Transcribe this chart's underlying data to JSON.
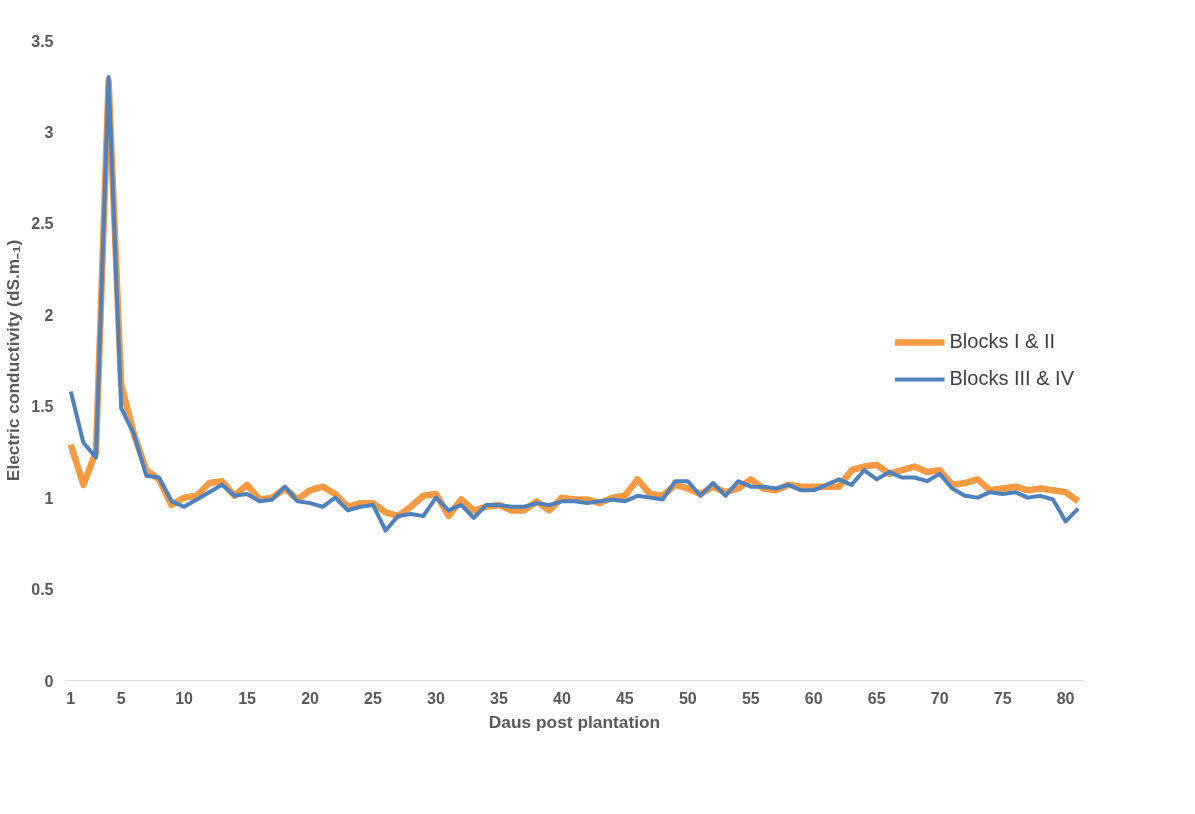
{
  "chart_data": {
    "type": "line",
    "xlabel": "Daus post plantation",
    "ylabel": "Electric conductivity (dS.m₋₁)",
    "x": [
      1,
      2,
      3,
      4,
      5,
      6,
      7,
      8,
      9,
      10,
      11,
      12,
      13,
      14,
      15,
      16,
      17,
      18,
      19,
      20,
      21,
      22,
      23,
      24,
      25,
      26,
      27,
      28,
      29,
      30,
      31,
      32,
      33,
      34,
      35,
      36,
      37,
      38,
      39,
      40,
      41,
      42,
      43,
      44,
      45,
      46,
      47,
      48,
      49,
      50,
      51,
      52,
      53,
      54,
      55,
      56,
      57,
      58,
      59,
      60,
      61,
      62,
      63,
      64,
      65,
      66,
      67,
      68,
      69,
      70,
      71,
      72,
      73,
      74,
      75,
      76,
      77,
      78,
      79,
      80,
      81
    ],
    "xlim": [
      0.5,
      81.5
    ],
    "xticks": [
      1,
      5,
      10,
      15,
      20,
      25,
      30,
      35,
      40,
      45,
      50,
      55,
      60,
      65,
      70,
      75,
      80
    ],
    "ylim": [
      0,
      3.5
    ],
    "yticks": [
      0,
      0.5,
      1,
      1.5,
      2,
      2.5,
      3,
      3.5
    ],
    "grid": false,
    "legend": "right",
    "marker": "none",
    "line_style": "solid",
    "series": [
      {
        "name": "Blocks I & II",
        "color": "#f39a43",
        "values": [
          1.29,
          1.07,
          1.25,
          3.28,
          1.62,
          1.35,
          1.15,
          1.1,
          0.96,
          1.0,
          1.01,
          1.08,
          1.09,
          1.01,
          1.07,
          0.99,
          1.0,
          1.05,
          0.99,
          1.04,
          1.06,
          1.02,
          0.95,
          0.97,
          0.97,
          0.92,
          0.9,
          0.95,
          1.01,
          1.02,
          0.9,
          0.99,
          0.93,
          0.95,
          0.96,
          0.93,
          0.93,
          0.98,
          0.93,
          1.0,
          0.99,
          0.99,
          0.97,
          1.0,
          1.01,
          1.1,
          1.02,
          1.01,
          1.07,
          1.05,
          1.02,
          1.06,
          1.03,
          1.05,
          1.1,
          1.05,
          1.04,
          1.07,
          1.06,
          1.06,
          1.06,
          1.06,
          1.15,
          1.17,
          1.18,
          1.13,
          1.15,
          1.17,
          1.14,
          1.15,
          1.07,
          1.08,
          1.1,
          1.04,
          1.05,
          1.06,
          1.04,
          1.05,
          1.04,
          1.03,
          0.98
        ]
      },
      {
        "name": "Blocks III & IV",
        "color": "#4f81bd",
        "values": [
          1.58,
          1.3,
          1.22,
          3.3,
          1.49,
          1.35,
          1.12,
          1.11,
          0.98,
          0.95,
          0.99,
          1.03,
          1.07,
          1.01,
          1.02,
          0.98,
          0.99,
          1.06,
          0.98,
          0.97,
          0.95,
          1.0,
          0.93,
          0.95,
          0.96,
          0.82,
          0.9,
          0.91,
          0.9,
          1.0,
          0.93,
          0.96,
          0.89,
          0.96,
          0.96,
          0.95,
          0.95,
          0.97,
          0.96,
          0.98,
          0.98,
          0.97,
          0.98,
          0.99,
          0.98,
          1.01,
          1.0,
          0.99,
          1.09,
          1.09,
          1.01,
          1.08,
          1.01,
          1.09,
          1.06,
          1.06,
          1.05,
          1.07,
          1.04,
          1.04,
          1.07,
          1.1,
          1.07,
          1.15,
          1.1,
          1.14,
          1.11,
          1.11,
          1.09,
          1.13,
          1.05,
          1.01,
          1.0,
          1.03,
          1.02,
          1.03,
          1.0,
          1.01,
          0.99,
          0.87,
          0.94
        ]
      }
    ]
  }
}
